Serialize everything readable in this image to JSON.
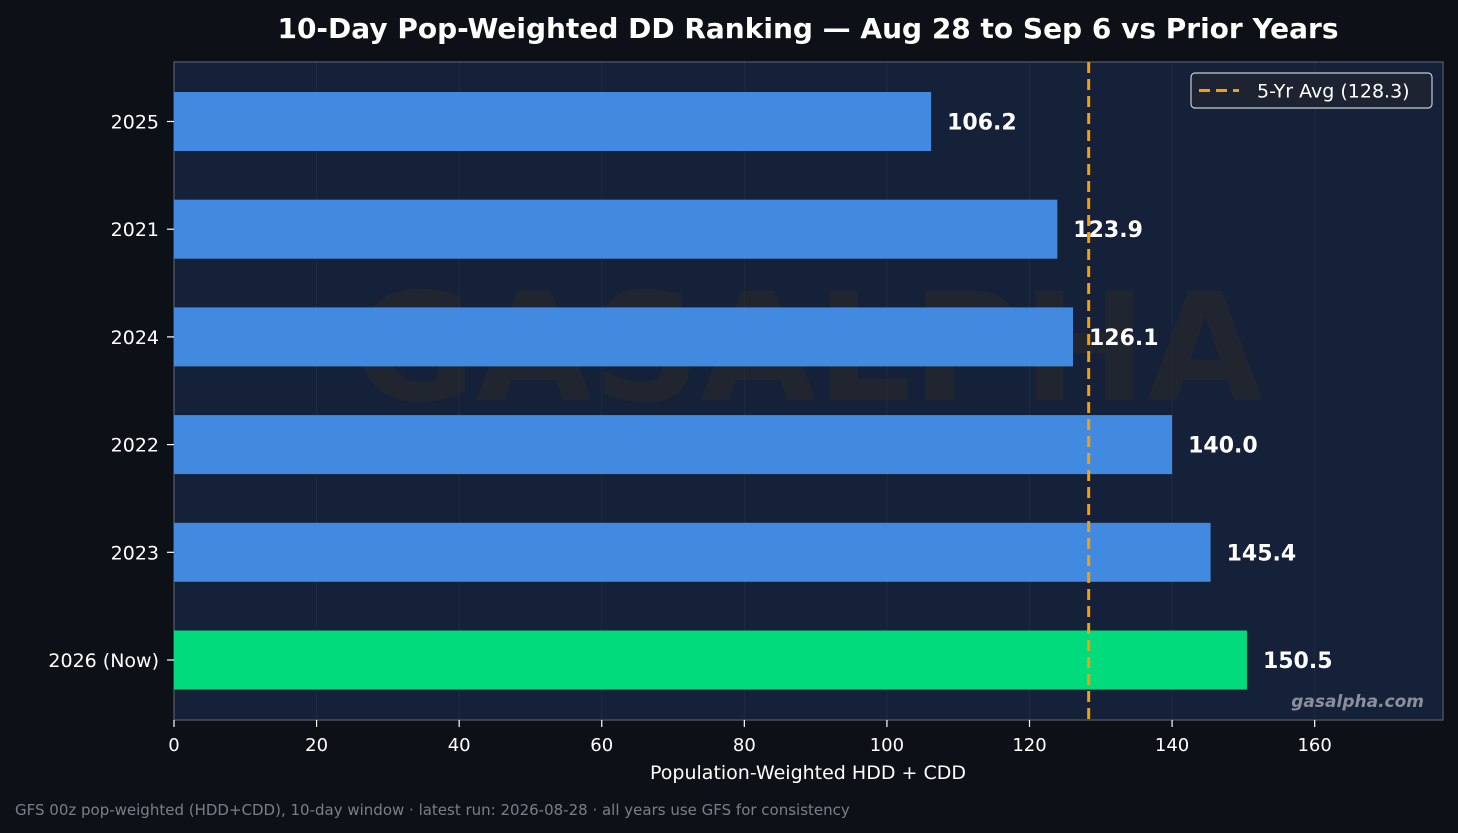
{
  "chart_data": {
    "type": "bar",
    "orientation": "horizontal",
    "title": "10-Day Pop-Weighted DD Ranking — Aug 28 to Sep 6 vs Prior Years",
    "xlabel": "Population-Weighted HDD + CDD",
    "ylabel": "",
    "xlim": [
      0,
      178
    ],
    "xticks": [
      0,
      20,
      40,
      60,
      80,
      100,
      120,
      140,
      160
    ],
    "grid": true,
    "legend_position": "top-right",
    "categories": [
      "2025",
      "2021",
      "2024",
      "2022",
      "2023",
      "2026 (Now)"
    ],
    "values": [
      106.2,
      123.9,
      126.1,
      140.0,
      145.4,
      150.5
    ],
    "value_labels": [
      "106.2",
      "123.9",
      "126.1",
      "140.0",
      "145.4",
      "150.5"
    ],
    "highlight_index": 5,
    "colors": {
      "bar": "#418ae0",
      "highlight": "#02db7b",
      "average_line": "#f5a00a",
      "plot_background": "#152039",
      "page_background": "#0d1017"
    },
    "reference_line": {
      "value": 128.3,
      "label": "5-Yr Avg (128.3)",
      "style": "dashed"
    },
    "watermark": "GASALPHA",
    "credit": "gasalpha.com",
    "footer": "GFS 00z pop-weighted (HDD+CDD), 10-day window  ·  latest run: 2026-08-28  ·  all years use GFS for consistency"
  }
}
